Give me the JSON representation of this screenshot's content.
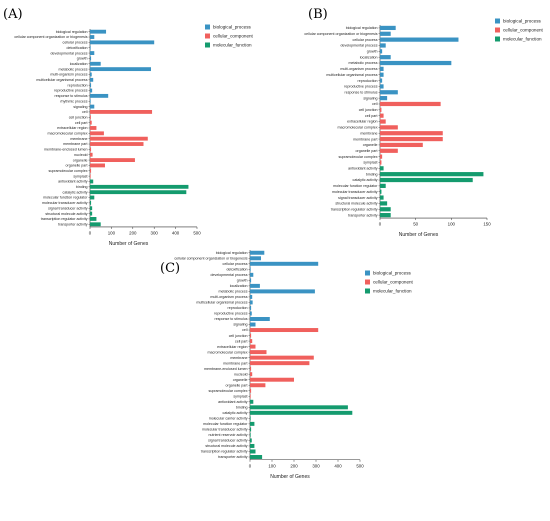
{
  "colors": {
    "biological_process": "#3a93c3",
    "cellular_component": "#f0605d",
    "molecular_function": "#149b6e"
  },
  "chart_data": [
    {
      "type": "bar",
      "panel_label": "(A)",
      "orientation": "horizontal",
      "xlabel": "Number of Genes",
      "xlim": [
        0,
        500
      ],
      "xticks": [
        0,
        100,
        200,
        300,
        400,
        500
      ],
      "legend": [
        "biological_process",
        "cellular_component",
        "molecular_function"
      ],
      "legend_position": "right",
      "categories": [
        "biological regulation",
        "cellular component organization or biogenesis",
        "cellular process",
        "detoxification",
        "developmental process",
        "growth",
        "localization",
        "metabolic process",
        "multi-organism process",
        "multicellular organismal process",
        "reproduction",
        "reproductive process",
        "response to stimulus",
        "rhythmic process",
        "signaling",
        "cell",
        "cell junction",
        "cell part",
        "extracellular region",
        "macromolecular complex",
        "membrane",
        "membrane part",
        "membrane-enclosed lumen",
        "nucleoid",
        "organelle",
        "organelle part",
        "supramolecular complex",
        "symplast",
        "antioxidant activity",
        "binding",
        "catalytic activity",
        "molecular function regulator",
        "molecular transducer activity",
        "signal transducer activity",
        "structural molecule activity",
        "transcription regulator activity",
        "transporter activity"
      ],
      "groups": [
        "biological_process",
        "biological_process",
        "biological_process",
        "biological_process",
        "biological_process",
        "biological_process",
        "biological_process",
        "biological_process",
        "biological_process",
        "biological_process",
        "biological_process",
        "biological_process",
        "biological_process",
        "biological_process",
        "biological_process",
        "cellular_component",
        "cellular_component",
        "cellular_component",
        "cellular_component",
        "cellular_component",
        "cellular_component",
        "cellular_component",
        "cellular_component",
        "cellular_component",
        "cellular_component",
        "cellular_component",
        "cellular_component",
        "cellular_component",
        "molecular_function",
        "molecular_function",
        "molecular_function",
        "molecular_function",
        "molecular_function",
        "molecular_function",
        "molecular_function",
        "molecular_function",
        "molecular_function"
      ],
      "values": [
        75,
        20,
        300,
        3,
        20,
        5,
        50,
        285,
        8,
        15,
        5,
        10,
        85,
        3,
        20,
        290,
        4,
        8,
        30,
        65,
        270,
        250,
        5,
        12,
        210,
        70,
        5,
        3,
        15,
        460,
        450,
        20,
        5,
        10,
        10,
        30,
        50
      ]
    },
    {
      "type": "bar",
      "panel_label": "(B)",
      "orientation": "horizontal",
      "xlabel": "Number of Genes",
      "xlim": [
        0,
        150
      ],
      "xticks": [
        0,
        50,
        100,
        150
      ],
      "legend": [
        "biological_process",
        "cellular_component",
        "molecular_function"
      ],
      "legend_position": "right",
      "categories": [
        "biological regulation",
        "cellular component organization or biogenesis",
        "cellular process",
        "developmental process",
        "growth",
        "localization",
        "metabolic process",
        "multi-organism process",
        "multicellular organismal process",
        "reproduction",
        "reproductive process",
        "response to stimulus",
        "signaling",
        "cell",
        "cell junction",
        "cell part",
        "extracellular region",
        "macromolecular complex",
        "membrane",
        "membrane part",
        "organelle",
        "organelle part",
        "supramolecular complex",
        "symplast",
        "antioxidant activity",
        "binding",
        "catalytic activity",
        "molecular function regulator",
        "molecular transducer activity",
        "signal transducer activity",
        "structural molecule activity",
        "transcription regulator activity",
        "transporter activity"
      ],
      "groups": [
        "biological_process",
        "biological_process",
        "biological_process",
        "biological_process",
        "biological_process",
        "biological_process",
        "biological_process",
        "biological_process",
        "biological_process",
        "biological_process",
        "biological_process",
        "biological_process",
        "biological_process",
        "cellular_component",
        "cellular_component",
        "cellular_component",
        "cellular_component",
        "cellular_component",
        "cellular_component",
        "cellular_component",
        "cellular_component",
        "cellular_component",
        "cellular_component",
        "cellular_component",
        "molecular_function",
        "molecular_function",
        "molecular_function",
        "molecular_function",
        "molecular_function",
        "molecular_function",
        "molecular_function",
        "molecular_function",
        "molecular_function"
      ],
      "values": [
        22,
        15,
        110,
        8,
        3,
        15,
        100,
        5,
        5,
        3,
        5,
        25,
        10,
        85,
        2,
        5,
        8,
        25,
        88,
        88,
        60,
        25,
        3,
        2,
        5,
        145,
        130,
        8,
        2,
        5,
        10,
        15,
        15
      ]
    },
    {
      "type": "bar",
      "panel_label": "(C)",
      "orientation": "horizontal",
      "xlabel": "Number of Genes",
      "xlim": [
        0,
        500
      ],
      "xticks": [
        0,
        100,
        200,
        300,
        400,
        500
      ],
      "legend": [
        "biological_process",
        "cellular_component",
        "molecular_function"
      ],
      "legend_position": "right",
      "categories": [
        "biological regulation",
        "cellular component organization or biogenesis",
        "cellular process",
        "detoxification",
        "developmental process",
        "growth",
        "localization",
        "metabolic process",
        "multi-organism process",
        "multicellular organismal process",
        "reproduction",
        "reproductive process",
        "response to stimulus",
        "signaling",
        "cell",
        "cell junction",
        "cell part",
        "extracellular region",
        "macromolecular complex",
        "membrane",
        "membrane part",
        "membrane-enclosed lumen",
        "nucleoid",
        "organelle",
        "organelle part",
        "supramolecular complex",
        "symplast",
        "antioxidant activity",
        "binding",
        "catalytic activity",
        "molecular carrier activity",
        "molecular function regulator",
        "molecular transducer activity",
        "nutrient reservoir activity",
        "signal transducer activity",
        "structural molecule activity",
        "transcription regulator activity",
        "transporter activity"
      ],
      "groups": [
        "biological_process",
        "biological_process",
        "biological_process",
        "biological_process",
        "biological_process",
        "biological_process",
        "biological_process",
        "biological_process",
        "biological_process",
        "biological_process",
        "biological_process",
        "biological_process",
        "biological_process",
        "biological_process",
        "cellular_component",
        "cellular_component",
        "cellular_component",
        "cellular_component",
        "cellular_component",
        "cellular_component",
        "cellular_component",
        "cellular_component",
        "cellular_component",
        "cellular_component",
        "cellular_component",
        "cellular_component",
        "cellular_component",
        "molecular_function",
        "molecular_function",
        "molecular_function",
        "molecular_function",
        "molecular_function",
        "molecular_function",
        "molecular_function",
        "molecular_function",
        "molecular_function",
        "molecular_function",
        "molecular_function"
      ],
      "values": [
        65,
        50,
        310,
        3,
        15,
        5,
        45,
        295,
        10,
        12,
        5,
        8,
        90,
        25,
        310,
        5,
        10,
        25,
        75,
        290,
        270,
        5,
        10,
        200,
        70,
        5,
        3,
        15,
        445,
        465,
        3,
        20,
        5,
        3,
        8,
        20,
        25,
        55
      ]
    }
  ]
}
